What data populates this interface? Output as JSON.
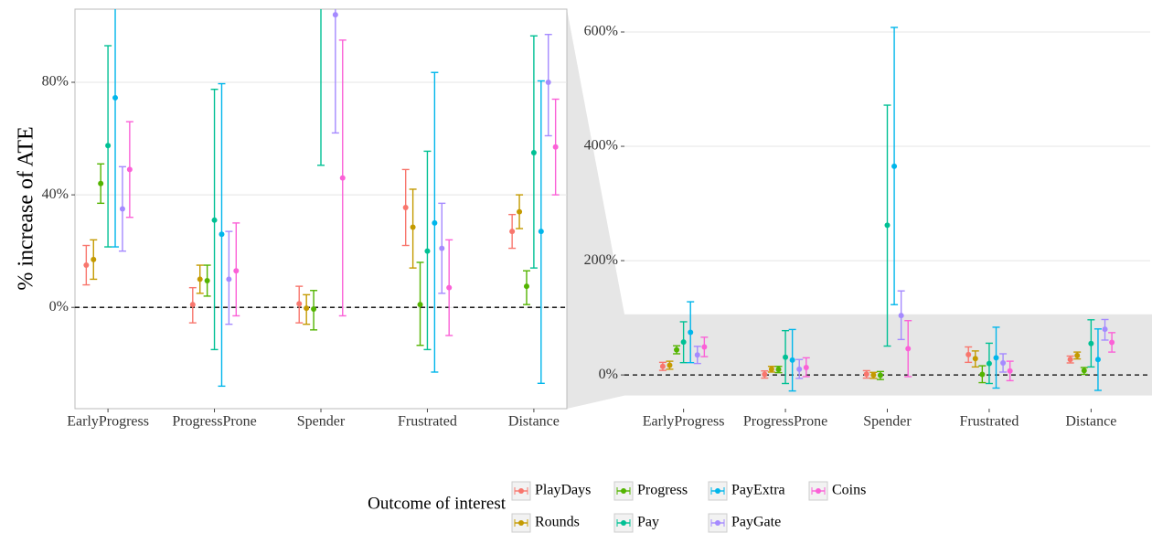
{
  "chart_data": {
    "type": "errorbar",
    "y_label": "% increase of ATE",
    "legend_title": "Outcome of interest",
    "categories": [
      "EarlyProgress",
      "ProgressProne",
      "Spender",
      "Frustrated",
      "Distance"
    ],
    "series": [
      {
        "name": "PlayDays",
        "color": "#F8766D",
        "values": [
          15,
          1,
          1.3,
          35.5,
          27
        ],
        "lower": [
          8,
          -5.5,
          -5.5,
          22,
          21
        ],
        "upper": [
          22,
          7,
          7.5,
          49,
          33
        ]
      },
      {
        "name": "Rounds",
        "color": "#C49A00",
        "values": [
          17,
          10,
          -0.3,
          28.5,
          34
        ],
        "lower": [
          10,
          5,
          -6,
          14,
          28
        ],
        "upper": [
          24,
          15,
          4.5,
          42,
          40
        ]
      },
      {
        "name": "Progress",
        "color": "#53B400",
        "values": [
          44,
          9.5,
          -0.6,
          1,
          7.5
        ],
        "lower": [
          37,
          4,
          -8,
          -13.5,
          1
        ],
        "upper": [
          51,
          15,
          6,
          16,
          13
        ]
      },
      {
        "name": "Pay",
        "color": "#00C094",
        "values": [
          57.5,
          31,
          262,
          20,
          55
        ],
        "lower": [
          21.5,
          -15,
          50.5,
          -15,
          14
        ],
        "upper": [
          93,
          77.5,
          472,
          55.5,
          96.5
        ]
      },
      {
        "name": "PayExtra",
        "color": "#00B6EB",
        "values": [
          74.5,
          26,
          365,
          30,
          27
        ],
        "lower": [
          21.5,
          -28,
          123,
          -23,
          -27
        ],
        "upper": [
          128,
          79.5,
          608,
          83.5,
          80.5
        ]
      },
      {
        "name": "PayGate",
        "color": "#A58AFF",
        "values": [
          35,
          10,
          104,
          21,
          80
        ],
        "lower": [
          20,
          -6,
          62,
          5,
          61
        ],
        "upper": [
          50,
          27,
          147,
          37,
          97
        ]
      },
      {
        "name": "Coins",
        "color": "#FB61D7",
        "values": [
          49,
          13,
          46,
          7,
          57
        ],
        "lower": [
          32,
          -3,
          -3,
          -10,
          40
        ],
        "upper": [
          66,
          30,
          95,
          24,
          74
        ]
      }
    ],
    "panels": [
      {
        "ylim": [
          -36,
          106
        ],
        "yticks": [
          {
            "value": 0,
            "label": "0%"
          },
          {
            "value": 40,
            "label": "40%"
          },
          {
            "value": 80,
            "label": "80%"
          }
        ]
      },
      {
        "ylim": [
          -59,
          640
        ],
        "yticks": [
          {
            "value": 0,
            "label": "0%"
          },
          {
            "value": 200,
            "label": "200%"
          },
          {
            "value": 400,
            "label": "400%"
          },
          {
            "value": 600,
            "label": "600%"
          }
        ]
      }
    ]
  }
}
